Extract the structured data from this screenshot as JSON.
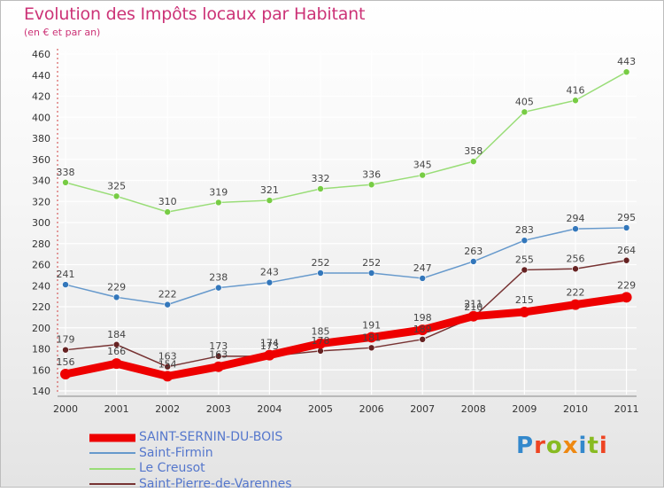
{
  "title": "Evolution des Impôts locaux par Habitant",
  "subtitle": "(en € et par an)",
  "logo": {
    "text": "Proxiti",
    "letter_colors": [
      "#3388cc",
      "#ee4422",
      "#88bb22",
      "#ee8811",
      "#3388cc",
      "#88bb22",
      "#ee4422"
    ]
  },
  "chart_data": {
    "type": "line",
    "title": "Evolution des Impôts locaux par Habitant",
    "subtitle": "(en € et par an)",
    "categories": [
      "2000",
      "2001",
      "2002",
      "2003",
      "2004",
      "2005",
      "2006",
      "2007",
      "2008",
      "2009",
      "2010",
      "2011"
    ],
    "y_ticks": [
      "140",
      "160",
      "180",
      "200",
      "220",
      "240",
      "260",
      "280",
      "300",
      "320",
      "340",
      "360",
      "380",
      "400",
      "420",
      "440",
      "460"
    ],
    "ylim": [
      140,
      460
    ],
    "grid": true,
    "legend_position": "bottom-left",
    "series": [
      {
        "name": "SAINT-SERNIN-DU-BOIS",
        "values": [
          156,
          166,
          154,
          163,
          174,
          185,
          191,
          198,
          211,
          215,
          222,
          229
        ],
        "labels": [
          "156",
          "166",
          "154",
          "163",
          "174",
          "185",
          "191",
          "198",
          "211",
          "215",
          "222",
          "229"
        ],
        "line_color": "#ee0000",
        "marker_color": "#ee0000",
        "line_width": 9,
        "marker_radius": 6
      },
      {
        "name": "Saint-Firmin",
        "values": [
          241,
          229,
          222,
          238,
          243,
          252,
          252,
          247,
          263,
          283,
          294,
          295
        ],
        "labels": [
          "241",
          "229",
          "222",
          "238",
          "243",
          "252",
          "252",
          "247",
          "263",
          "283",
          "294",
          "295"
        ],
        "line_color": "#6699cc",
        "marker_color": "#3377bb",
        "line_width": 1.5,
        "marker_radius": 3.5
      },
      {
        "name": "Le Creusot",
        "values": [
          338,
          325,
          310,
          319,
          321,
          332,
          336,
          345,
          358,
          405,
          416,
          443
        ],
        "labels": [
          "338",
          "325",
          "310",
          "319",
          "321",
          "332",
          "336",
          "345",
          "358",
          "405",
          "416",
          "443"
        ],
        "line_color": "#99dd77",
        "marker_color": "#77cc44",
        "line_width": 1.5,
        "marker_radius": 3.5
      },
      {
        "name": "Saint-Pierre-de-Varennes",
        "values": [
          179,
          184,
          163,
          173,
          173,
          178,
          181,
          189,
          210,
          255,
          256,
          264
        ],
        "labels": [
          "179",
          "184",
          "163",
          "173",
          "173",
          "178",
          "181",
          "189",
          "210",
          "255",
          "256",
          "264"
        ],
        "line_color": "#773333",
        "marker_color": "#662222",
        "line_width": 1.5,
        "marker_radius": 3.5
      }
    ]
  }
}
